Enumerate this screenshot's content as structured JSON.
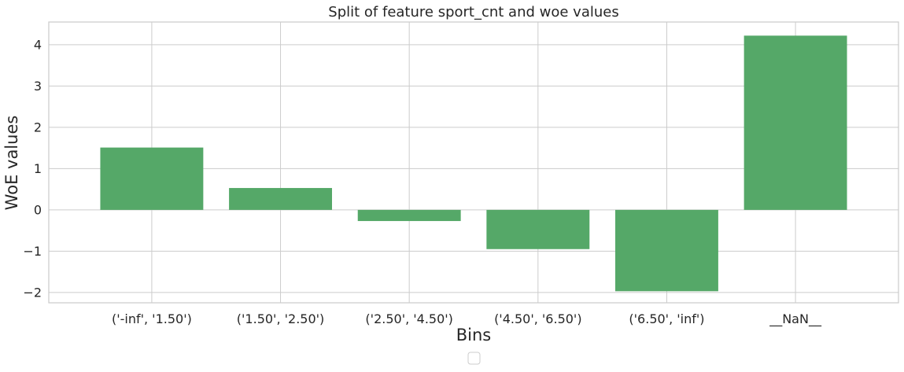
{
  "chart_data": {
    "type": "bar",
    "title": "Split of feature sport_cnt and woe values",
    "xlabel": "Bins",
    "ylabel": "WoE values",
    "categories": [
      "('-inf', '1.50')",
      "('1.50', '2.50')",
      "('2.50', '4.50')",
      "('4.50', '6.50')",
      "('6.50', 'inf')",
      "__NaN__"
    ],
    "values": [
      1.51,
      0.53,
      -0.27,
      -0.95,
      -1.97,
      4.22
    ],
    "ylim": [
      -2.25,
      4.55
    ],
    "yticks": [
      -2,
      -1,
      0,
      1,
      2,
      3,
      4
    ],
    "ytick_labels": [
      "−2",
      "−1",
      "0",
      "1",
      "2",
      "3",
      "4"
    ],
    "grid": true,
    "legend_position": "bottom-center",
    "bar_color": "#55a868",
    "grid_color": "#cccccc",
    "text_color": "#262626"
  }
}
